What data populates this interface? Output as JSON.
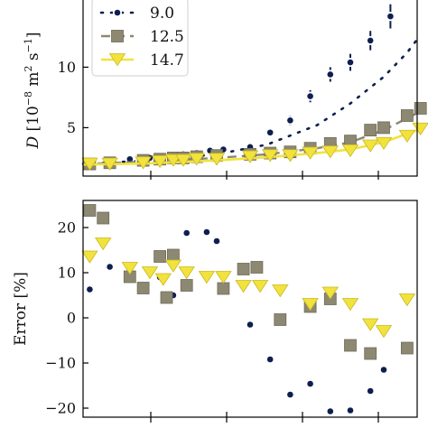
{
  "chart_data": [
    {
      "type": "line",
      "ylabel": "D [10^{-8} m^2 s^{-1}]",
      "ylim": [
        1,
        16
      ],
      "yticks": [
        5,
        10
      ],
      "xlim": [
        0,
        1
      ],
      "grid": false,
      "legend": {
        "placement": "top-left"
      },
      "series": [
        {
          "name": "9.0",
          "color": "#0d1f4f",
          "marker": "circle",
          "line": "dotted",
          "points": [
            {
              "x": 0.02,
              "y": 2.2,
              "err": 0.1
            },
            {
              "x": 0.08,
              "y": 2.3,
              "err": 0.1
            },
            {
              "x": 0.14,
              "y": 2.4,
              "err": 0.1
            },
            {
              "x": 0.2,
              "y": 2.5,
              "err": 0.1
            },
            {
              "x": 0.26,
              "y": 2.6,
              "err": 0.1
            },
            {
              "x": 0.3,
              "y": 2.8,
              "err": 0.1
            },
            {
              "x": 0.34,
              "y": 2.9,
              "err": 0.1
            },
            {
              "x": 0.38,
              "y": 3.1,
              "err": 0.15
            },
            {
              "x": 0.42,
              "y": 3.2,
              "err": 0.15
            },
            {
              "x": 0.5,
              "y": 3.4,
              "err": 0.2
            },
            {
              "x": 0.56,
              "y": 4.6,
              "err": 0.3
            },
            {
              "x": 0.62,
              "y": 5.6,
              "err": 0.4
            },
            {
              "x": 0.68,
              "y": 7.6,
              "err": 0.5
            },
            {
              "x": 0.74,
              "y": 9.4,
              "err": 0.6
            },
            {
              "x": 0.8,
              "y": 10.4,
              "err": 0.7
            },
            {
              "x": 0.86,
              "y": 12.2,
              "err": 0.8
            },
            {
              "x": 0.92,
              "y": 14.2,
              "err": 1.0
            }
          ],
          "fit": [
            [
              0.0,
              2.0
            ],
            [
              0.2,
              2.3
            ],
            [
              0.4,
              2.8
            ],
            [
              0.55,
              3.6
            ],
            [
              0.7,
              5.2
            ],
            [
              0.8,
              7.0
            ],
            [
              0.9,
              9.2
            ],
            [
              0.97,
              11.2
            ],
            [
              1.0,
              12.3
            ]
          ]
        },
        {
          "name": "12.5",
          "color": "#8d8872",
          "marker": "square",
          "line": "dashed",
          "points": [
            {
              "x": 0.02,
              "y": 2.0
            },
            {
              "x": 0.08,
              "y": 2.1
            },
            {
              "x": 0.18,
              "y": 2.3
            },
            {
              "x": 0.23,
              "y": 2.4
            },
            {
              "x": 0.27,
              "y": 2.5
            },
            {
              "x": 0.3,
              "y": 2.5
            },
            {
              "x": 0.34,
              "y": 2.6
            },
            {
              "x": 0.4,
              "y": 2.7
            },
            {
              "x": 0.5,
              "y": 2.8
            },
            {
              "x": 0.56,
              "y": 2.9
            },
            {
              "x": 0.62,
              "y": 3.0
            },
            {
              "x": 0.68,
              "y": 3.3
            },
            {
              "x": 0.74,
              "y": 3.7
            },
            {
              "x": 0.8,
              "y": 3.9
            },
            {
              "x": 0.86,
              "y": 4.8
            },
            {
              "x": 0.9,
              "y": 5.0
            },
            {
              "x": 0.97,
              "y": 6.0
            },
            {
              "x": 1.01,
              "y": 6.6
            }
          ],
          "fit": [
            [
              0.0,
              2.0
            ],
            [
              0.2,
              2.2
            ],
            [
              0.4,
              2.5
            ],
            [
              0.55,
              2.8
            ],
            [
              0.7,
              3.3
            ],
            [
              0.8,
              3.8
            ],
            [
              0.9,
              4.8
            ],
            [
              1.0,
              6.2
            ]
          ]
        },
        {
          "name": "14.7",
          "color": "#f2e23c",
          "marker": "triangle-down",
          "line": "solid",
          "points": [
            {
              "x": 0.02,
              "y": 2.0
            },
            {
              "x": 0.08,
              "y": 2.0
            },
            {
              "x": 0.18,
              "y": 2.1
            },
            {
              "x": 0.23,
              "y": 2.2
            },
            {
              "x": 0.27,
              "y": 2.3
            },
            {
              "x": 0.3,
              "y": 2.3
            },
            {
              "x": 0.34,
              "y": 2.4
            },
            {
              "x": 0.4,
              "y": 2.4
            },
            {
              "x": 0.5,
              "y": 2.6
            },
            {
              "x": 0.56,
              "y": 2.7
            },
            {
              "x": 0.62,
              "y": 2.7
            },
            {
              "x": 0.68,
              "y": 2.9
            },
            {
              "x": 0.74,
              "y": 3.0
            },
            {
              "x": 0.8,
              "y": 3.1
            },
            {
              "x": 0.86,
              "y": 3.5
            },
            {
              "x": 0.9,
              "y": 3.7
            },
            {
              "x": 0.97,
              "y": 4.3
            },
            {
              "x": 1.01,
              "y": 4.9
            }
          ],
          "fit": [
            [
              0.0,
              1.95
            ],
            [
              0.2,
              2.05
            ],
            [
              0.4,
              2.3
            ],
            [
              0.55,
              2.55
            ],
            [
              0.7,
              2.9
            ],
            [
              0.8,
              3.2
            ],
            [
              0.9,
              3.8
            ],
            [
              1.0,
              4.8
            ]
          ]
        }
      ]
    },
    {
      "type": "scatter",
      "ylabel": "Error [%]",
      "ylim": [
        -22,
        26
      ],
      "yticks": [
        -20,
        -10,
        0,
        10,
        20
      ],
      "xlim": [
        0,
        1
      ],
      "grid": false,
      "series": [
        {
          "name": "9.0",
          "color": "#0d1f4f",
          "marker": "circle",
          "points": [
            {
              "x": 0.02,
              "y": 6.3
            },
            {
              "x": 0.08,
              "y": 11.3
            },
            {
              "x": 0.18,
              "y": 7.0
            },
            {
              "x": 0.23,
              "y": 9.0
            },
            {
              "x": 0.27,
              "y": 5.0
            },
            {
              "x": 0.31,
              "y": 18.8
            },
            {
              "x": 0.37,
              "y": 19.0
            },
            {
              "x": 0.4,
              "y": 17.0
            },
            {
              "x": 0.5,
              "y": -1.5
            },
            {
              "x": 0.56,
              "y": -9.2
            },
            {
              "x": 0.62,
              "y": -17.0
            },
            {
              "x": 0.68,
              "y": -14.6
            },
            {
              "x": 0.74,
              "y": -20.7
            },
            {
              "x": 0.8,
              "y": -20.5
            },
            {
              "x": 0.86,
              "y": -16.2
            },
            {
              "x": 0.9,
              "y": -11.5
            }
          ]
        },
        {
          "name": "12.5",
          "color": "#8d8872",
          "marker": "square",
          "points": [
            {
              "x": 0.02,
              "y": 23.8
            },
            {
              "x": 0.06,
              "y": 22.1
            },
            {
              "x": 0.14,
              "y": 9.1
            },
            {
              "x": 0.18,
              "y": 6.6
            },
            {
              "x": 0.23,
              "y": 13.6
            },
            {
              "x": 0.25,
              "y": 4.5
            },
            {
              "x": 0.27,
              "y": 13.9
            },
            {
              "x": 0.31,
              "y": 7.2
            },
            {
              "x": 0.42,
              "y": 6.5
            },
            {
              "x": 0.48,
              "y": 10.8
            },
            {
              "x": 0.52,
              "y": 11.2
            },
            {
              "x": 0.59,
              "y": -0.4
            },
            {
              "x": 0.68,
              "y": 2.5
            },
            {
              "x": 0.74,
              "y": 4.2
            },
            {
              "x": 0.8,
              "y": -6.1
            },
            {
              "x": 0.86,
              "y": -7.9
            },
            {
              "x": 0.97,
              "y": -6.7
            }
          ]
        },
        {
          "name": "14.7",
          "color": "#f2e23c",
          "marker": "triangle-down",
          "points": [
            {
              "x": 0.02,
              "y": 13.5
            },
            {
              "x": 0.06,
              "y": 16.4
            },
            {
              "x": 0.14,
              "y": 11.0
            },
            {
              "x": 0.2,
              "y": 10.0
            },
            {
              "x": 0.24,
              "y": 8.5
            },
            {
              "x": 0.27,
              "y": 11.5
            },
            {
              "x": 0.31,
              "y": 10.0
            },
            {
              "x": 0.37,
              "y": 9.0
            },
            {
              "x": 0.42,
              "y": 9.0
            },
            {
              "x": 0.48,
              "y": 7.0
            },
            {
              "x": 0.53,
              "y": 7.0
            },
            {
              "x": 0.59,
              "y": 6.0
            },
            {
              "x": 0.68,
              "y": 3.0
            },
            {
              "x": 0.74,
              "y": 5.5
            },
            {
              "x": 0.8,
              "y": 3.0
            },
            {
              "x": 0.86,
              "y": -1.5
            },
            {
              "x": 0.9,
              "y": -3.0
            },
            {
              "x": 0.97,
              "y": 4.0
            }
          ]
        }
      ]
    }
  ]
}
